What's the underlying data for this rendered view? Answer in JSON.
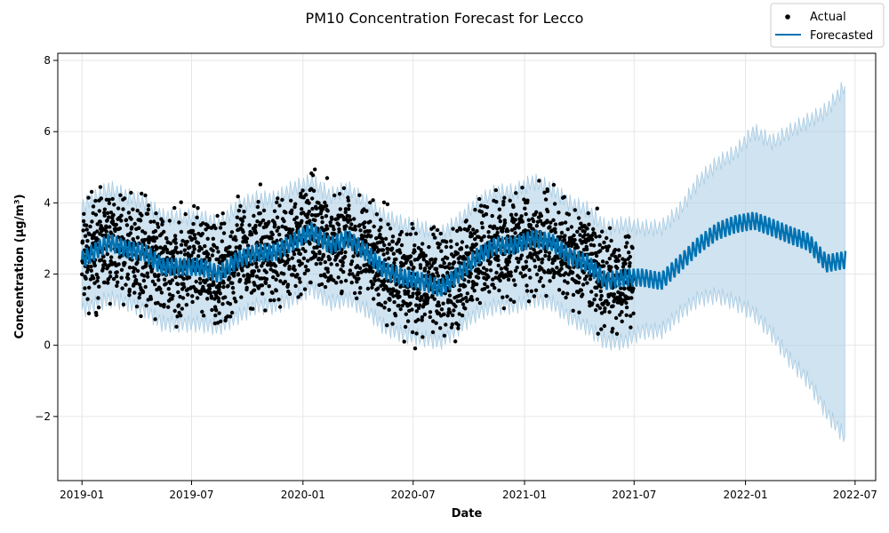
{
  "chart_data": {
    "type": "line",
    "title": "PM10 Concentration Forecast for Lecco",
    "xlabel": "Date",
    "ylabel": "Concentration (µg/m³)",
    "x_ticks": [
      "2019-01",
      "2019-07",
      "2020-01",
      "2020-07",
      "2021-01",
      "2021-07",
      "2022-01",
      "2022-07"
    ],
    "y_ticks": [
      "−2",
      "0",
      "2",
      "4",
      "6",
      "8"
    ],
    "xlim": [
      "2018-11-22",
      "2022-08-04"
    ],
    "ylim": [
      -3.8,
      8.2
    ],
    "grid": true,
    "legend": {
      "position": "top-right",
      "entries": [
        "Actual",
        "Forecasted"
      ]
    },
    "colors": {
      "actual": "#000000",
      "forecast": "#0072b2",
      "interval": "#a9cce3"
    },
    "actual_range": [
      "2019-01-01",
      "2021-06-30"
    ],
    "series": [
      {
        "name": "Forecasted",
        "dates": [
          "2019-01-01",
          "2019-02-15",
          "2019-03-15",
          "2019-04-15",
          "2019-05-15",
          "2019-06-15",
          "2019-07-15",
          "2019-08-15",
          "2019-09-15",
          "2019-10-15",
          "2019-11-15",
          "2019-12-15",
          "2020-01-15",
          "2020-02-15",
          "2020-03-15",
          "2020-04-15",
          "2020-05-15",
          "2020-06-15",
          "2020-07-15",
          "2020-08-15",
          "2020-09-15",
          "2020-10-15",
          "2020-11-15",
          "2020-12-15",
          "2021-01-15",
          "2021-02-15",
          "2021-03-15",
          "2021-04-15",
          "2021-05-15",
          "2021-06-15",
          "2021-07-15",
          "2021-08-15",
          "2021-09-15",
          "2021-10-15",
          "2021-11-15",
          "2021-12-15",
          "2022-01-15",
          "2022-02-15",
          "2022-03-15",
          "2022-04-15",
          "2022-05-15",
          "2022-06-15"
        ],
        "yhat": [
          2.4,
          2.9,
          2.7,
          2.6,
          2.2,
          2.2,
          2.2,
          2.0,
          2.4,
          2.6,
          2.6,
          2.9,
          3.2,
          2.8,
          3.0,
          2.6,
          2.1,
          1.9,
          1.8,
          1.6,
          2.0,
          2.5,
          2.8,
          2.8,
          3.0,
          2.9,
          2.5,
          2.3,
          1.8,
          1.9,
          1.9,
          1.8,
          2.3,
          2.8,
          3.2,
          3.4,
          3.5,
          3.3,
          3.1,
          2.9,
          2.3,
          2.4
        ],
        "yhat_lower": [
          1.0,
          1.3,
          1.2,
          1.0,
          0.6,
          0.6,
          0.6,
          0.5,
          0.8,
          1.1,
          1.1,
          1.3,
          1.6,
          1.2,
          1.3,
          1.0,
          0.5,
          0.3,
          0.2,
          0.1,
          0.5,
          0.9,
          1.1,
          1.1,
          1.3,
          1.2,
          0.8,
          0.5,
          0.1,
          0.1,
          0.4,
          0.4,
          0.9,
          1.3,
          1.4,
          1.2,
          0.9,
          0.3,
          -0.4,
          -1.0,
          -1.9,
          -2.6
        ],
        "yhat_upper": [
          3.9,
          4.4,
          4.2,
          4.0,
          3.6,
          3.6,
          3.6,
          3.4,
          3.9,
          4.1,
          4.1,
          4.4,
          4.6,
          4.2,
          4.4,
          4.0,
          3.6,
          3.4,
          3.3,
          3.1,
          3.5,
          4.0,
          4.3,
          4.3,
          4.6,
          4.4,
          4.0,
          3.8,
          3.3,
          3.4,
          3.3,
          3.3,
          3.8,
          4.6,
          5.1,
          5.4,
          6.0,
          5.7,
          6.0,
          6.3,
          6.6,
          7.3
        ]
      }
    ]
  }
}
